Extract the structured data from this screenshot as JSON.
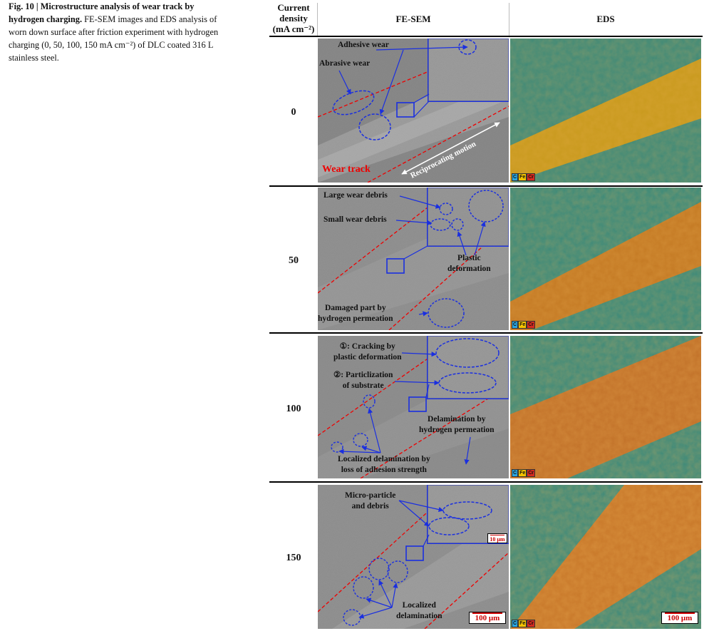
{
  "caption": {
    "label": "Fig. 10 | Microstructure analysis of wear track by hydrogen charging.",
    "text": "FE-SEM images and EDS analysis of worn down surface after friction experiment with hydrogen charging (0, 50, 100, 150 mA cm⁻²) of DLC coated 316 L stainless steel."
  },
  "headers": {
    "density_l1": "Current",
    "density_l2": "density",
    "density_l3": "(mA cm⁻²)",
    "fesem": "FE-SEM",
    "eds": "EDS"
  },
  "rows": [
    "0",
    "50",
    "100",
    "150"
  ],
  "legend": [
    "C",
    "Fe",
    "Cr"
  ],
  "legend_colors": [
    "#2aa6e0",
    "#f2c200",
    "#d42a20"
  ],
  "annotations": {
    "r0_adhesive": "Adhesive wear",
    "r0_abrasive": "Abrasive wear",
    "r0_weartrack": "Wear track",
    "r0_motion": "Reciprocating motion",
    "r1_large": "Large wear debris",
    "r1_small": "Small wear debris",
    "r1_plastic_l1": "Plastic",
    "r1_plastic_l2": "deformation",
    "r1_damaged_l1": "Damaged part by",
    "r1_damaged_l2": "hydrogen permeation",
    "r2_crack_l1": "①: Cracking by",
    "r2_crack_l2": "plastic deformation",
    "r2_partic_l1": "②: Particlization",
    "r2_partic_l2": "of substrate",
    "r2_delam_l1": "Delamination by",
    "r2_delam_l2": "hydrogen permeation",
    "r2_local_l1": "Localized delamination by",
    "r2_local_l2": "loss of adhesion strength",
    "r3_micro_l1": "Micro-particle",
    "r3_micro_l2": "and debris",
    "r3_local_l1": "Localized",
    "r3_local_l2": "delamination"
  },
  "scalebars": {
    "main": "100 μm",
    "inset": "10 μm"
  },
  "colors": {
    "annotation_blue": "#1a2fe0",
    "wear_track_red": "#e00000"
  }
}
